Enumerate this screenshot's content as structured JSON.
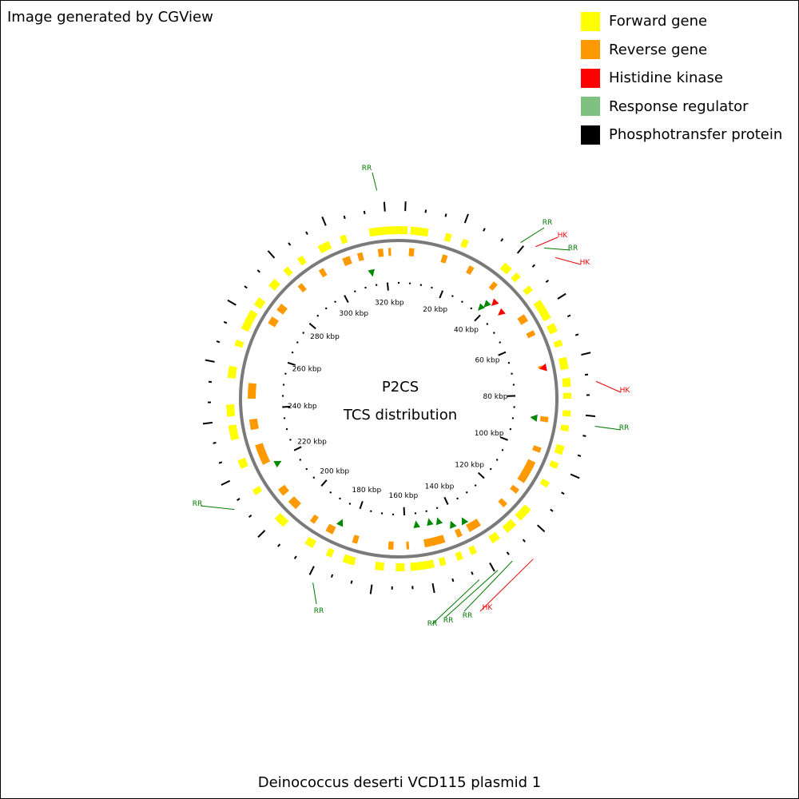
{
  "credit": "Image generated by CGView",
  "caption": "Deinococcus deserti VCD115 plasmid 1",
  "center": {
    "line1": "P2CS",
    "line2": "TCS distribution"
  },
  "legend": [
    {
      "label": "Forward gene",
      "color": "#ffff00"
    },
    {
      "label": "Reverse gene",
      "color": "#ff9900"
    },
    {
      "label": "Histidine kinase",
      "color": "#ff0000"
    },
    {
      "label": "Response regulator",
      "color": "#80c080"
    },
    {
      "label": "Phosphotransfer protein",
      "color": "#000000"
    }
  ],
  "map": {
    "length_kbp": 325,
    "kbp_labels": [
      "20 kbp",
      "40 kbp",
      "60 kbp",
      "80 kbp",
      "100 kbp",
      "120 kbp",
      "140 kbp",
      "160 kbp",
      "180 kbp",
      "200 kbp",
      "220 kbp",
      "240 kbp",
      "260 kbp",
      "280 kbp",
      "300 kbp",
      "320 kbp"
    ],
    "callouts": [
      {
        "label": "RR",
        "type": "RR",
        "color": "#007700"
      },
      {
        "label": "RR",
        "type": "RR",
        "color": "#007700"
      },
      {
        "label": "HK",
        "type": "HK",
        "color": "#ee0000"
      },
      {
        "label": "RR",
        "type": "RR",
        "color": "#007700"
      },
      {
        "label": "HK",
        "type": "HK",
        "color": "#ee0000"
      },
      {
        "label": "HK",
        "type": "HK",
        "color": "#ee0000"
      },
      {
        "label": "RR",
        "type": "RR",
        "color": "#007700"
      },
      {
        "label": "HK",
        "type": "HK",
        "color": "#ee0000"
      },
      {
        "label": "RR",
        "type": "RR",
        "color": "#007700"
      },
      {
        "label": "RR",
        "type": "RR",
        "color": "#007700"
      },
      {
        "label": "RR",
        "type": "RR",
        "color": "#007700"
      },
      {
        "label": "RR",
        "type": "RR",
        "color": "#007700"
      },
      {
        "label": "RR",
        "type": "RR",
        "color": "#007700"
      }
    ]
  }
}
